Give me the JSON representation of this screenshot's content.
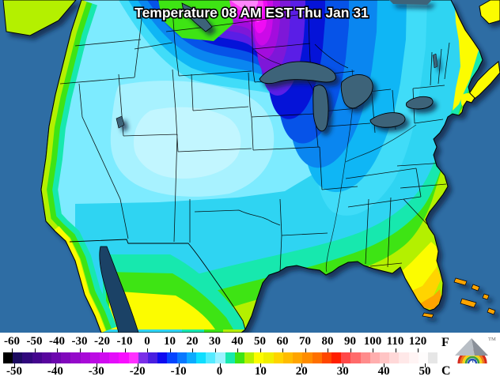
{
  "title": "Temperature 08 AM EST Thu Jan 31",
  "legend": {
    "f_unit": "F",
    "c_unit": "C",
    "f_ticks": [
      "-60",
      "-50",
      "-40",
      "-30",
      "-20",
      "-10",
      "0",
      "10",
      "20",
      "30",
      "40",
      "50",
      "60",
      "70",
      "80",
      "90",
      "100",
      "110",
      "120"
    ],
    "c_ticks": [
      "-50",
      "-40",
      "-30",
      "-20",
      "-10",
      "0",
      "10",
      "20",
      "30",
      "40",
      "50"
    ],
    "colorbar_colors": [
      "#000000",
      "#1c0b60",
      "#30087c",
      "#44068e",
      "#58069e",
      "#6c07ae",
      "#8008bc",
      "#9409ca",
      "#a80ad8",
      "#bc0be4",
      "#d00cf0",
      "#e40dfa",
      "#f80eff",
      "#ff30ff",
      "#7b2fe8",
      "#4a1fe0",
      "#0f0af0",
      "#0545ff",
      "#0878ff",
      "#0babff",
      "#0edeff",
      "#55eaff",
      "#9cf2ff",
      "#17e8ae",
      "#3ee414",
      "#b4f000",
      "#fcfc00",
      "#f0ee00",
      "#ffd400",
      "#ffbc00",
      "#ffa400",
      "#ff8c00",
      "#ff7000",
      "#ff4600",
      "#ff1e00",
      "#ff4848",
      "#ff6a6a",
      "#ff8c8c",
      "#ffaeae",
      "#ffc4c4",
      "#ffd8d8",
      "#ffe8e8",
      "#fff4f4",
      "#fefcfc",
      "#e6e6e6"
    ]
  },
  "logo": {
    "tm": "TM"
  },
  "map": {
    "colors": {
      "ocean": "#2e6da4",
      "gulf_california": "#1b4266",
      "lake": "#3d6379",
      "shadow": "#0a2440",
      "land_base": "#7debff",
      "plateau": "#a8f2ff",
      "plateau_core": "#c2f6ff",
      "cyan": "#2fd4f2",
      "aqua": "#17e8ae",
      "green": "#3ee414",
      "yellow_green": "#b4f000",
      "yellow": "#fcfc00",
      "gold": "#ffd400",
      "orange": "#ffa400",
      "cold1": "#40dcf8",
      "cold2": "#0fb6f5",
      "cold3": "#0a86f0",
      "cold4": "#0653e8",
      "cold5": "#0513d8",
      "violet": "#5a1ee6",
      "purple": "#7e17d8",
      "purple2": "#a30ddd",
      "magenta1": "#cb0ae8",
      "magenta2": "#f00cf4",
      "magenta3": "#ff3af8",
      "pink_core": "#ff85fb",
      "border": "#000000",
      "title_fill": "#ffffff"
    }
  }
}
